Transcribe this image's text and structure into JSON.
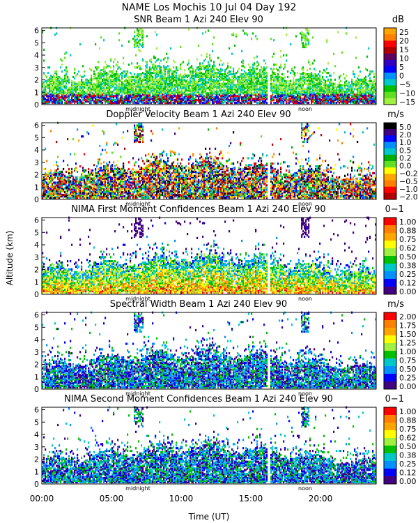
{
  "title": "NAME Los Mochis    10 Jul 04 Day 192",
  "ylabel": "Altitude (km)",
  "xlabel": "Time (UT)",
  "x_ticks": [
    "00:00",
    "05:00",
    "10:00",
    "15:00",
    "20:00"
  ],
  "x_tick_values": [
    0,
    5,
    10,
    15,
    20
  ],
  "xlim": [
    0,
    24
  ],
  "day_markers": [
    "midnight",
    "noon"
  ],
  "day_marker_values": [
    6.9,
    18.9
  ],
  "y_ticks": [
    "0",
    "1",
    "2",
    "3",
    "4",
    "5",
    "6"
  ],
  "y_tick_values": [
    0,
    1,
    2,
    3,
    4,
    5,
    6
  ],
  "ylim": [
    0,
    6.2
  ],
  "chart_data": [
    {
      "type": "heatmap",
      "title": "SNR Beam 1 Azi 240 Elev 90",
      "unit": "dB",
      "colorbar_ticks": [
        "25",
        "20",
        "15",
        "10",
        "5",
        "0",
        "−5",
        "−10",
        "−15"
      ],
      "colorbar_colors": [
        "#ffa500",
        "#ff8000",
        "#ff0000",
        "#b00000",
        "#600060",
        "#3000c0",
        "#0000ff",
        "#0090ff",
        "#00c8c8",
        "#00c000",
        "#60e020",
        "#a0f040"
      ],
      "field": "snr"
    },
    {
      "type": "heatmap",
      "title": "Doppler Velocity Beam 1 Azi 240 Elev 90",
      "unit": "m/s",
      "colorbar_ticks": [
        "5.0",
        "2.0",
        "1.0",
        "0.5",
        "0.2",
        "0.0",
        "−0.2",
        "−0.5",
        "−1.0",
        "−2.0"
      ],
      "colorbar_colors": [
        "#000000",
        "#400080",
        "#0000ff",
        "#0090ff",
        "#00c8c8",
        "#00b000",
        "#60e020",
        "#ffff00",
        "#ffa500",
        "#ff8000",
        "#ff0000",
        "#b00000"
      ],
      "field": "doppler"
    },
    {
      "type": "heatmap",
      "title": "NIMA First Moment Confidences Beam 1 Azi 240 Elev 90",
      "unit": "0−1",
      "colorbar_ticks": [
        "1.00",
        "0.88",
        "0.75",
        "0.62",
        "0.50",
        "0.38",
        "0.25",
        "0.12",
        "0.00"
      ],
      "colorbar_colors": [
        "#ff0000",
        "#ff8000",
        "#ffa500",
        "#ffff00",
        "#a0f040",
        "#00c000",
        "#00c8c8",
        "#0090ff",
        "#0000ff",
        "#400080"
      ],
      "field": "conf1"
    },
    {
      "type": "heatmap",
      "title": "Spectral Width Beam 1 Azi 240 Elev 90",
      "unit": "m/s",
      "colorbar_ticks": [
        "2.00",
        "1.75",
        "1.50",
        "1.25",
        "1.00",
        "0.75",
        "0.50",
        "0.25",
        "0.00"
      ],
      "colorbar_colors": [
        "#ff0000",
        "#ff8000",
        "#ffa500",
        "#ffff00",
        "#a0f040",
        "#00c000",
        "#00c8c8",
        "#0090ff",
        "#0000ff",
        "#400080"
      ],
      "field": "width"
    },
    {
      "type": "heatmap",
      "title": "NIMA Second Moment Confidences Beam 1 Azi 240 Elev 90",
      "unit": "0−1",
      "colorbar_ticks": [
        "1.00",
        "0.88",
        "0.75",
        "0.62",
        "0.50",
        "0.38",
        "0.25",
        "0.12",
        "0.00"
      ],
      "colorbar_colors": [
        "#ff0000",
        "#ff8000",
        "#ffa500",
        "#ffff00",
        "#a0f040",
        "#00c000",
        "#00c8c8",
        "#0090ff",
        "#0000ff",
        "#400080"
      ],
      "field": "conf2"
    }
  ]
}
